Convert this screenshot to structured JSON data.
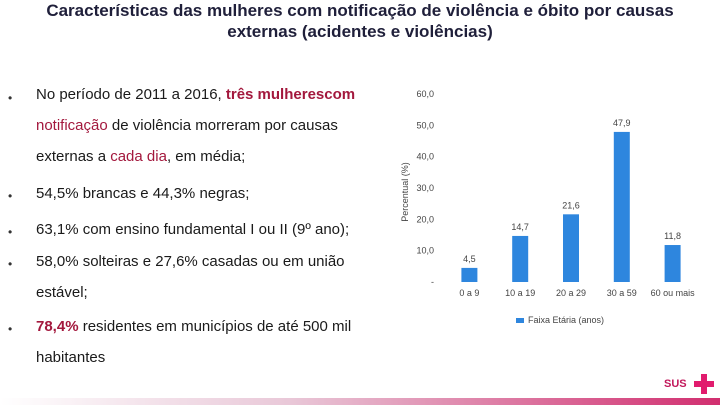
{
  "slide": {
    "title_line1": "Características das mulheres com notificação de violência e óbito por causas",
    "title_line2": "externas (acidentes e violências)"
  },
  "bullets": {
    "b1": {
      "line1_pre": "No período de 2011 a 2016, ",
      "line1_hl": "três mulherescom",
      "line2_hl": "notificação",
      "line2_post": " de violência morreram por causas",
      "line3_pre": "externas a ",
      "line3_hl": "cada dia",
      "line3_post": ", em média;"
    },
    "b2": "54,5% brancas e 44,3% negras;",
    "b3": "63,1% com ensino fundamental I ou II (9º ano);",
    "b4_line1": "58,0% solteiras e 27,6% casadas ou em união",
    "b4_line2": "estável;",
    "b5": {
      "line1_hl": "78,4%",
      "line1_post": " residentes em municípios de até 500 mil",
      "line2": "habitantes"
    }
  },
  "chart_data": {
    "type": "bar",
    "categories": [
      "0 a 9",
      "10 a 19",
      "20 a 29",
      "30 a 59",
      "60 ou mais"
    ],
    "series": [
      {
        "name": "Faixa Etária (anos)",
        "values": [
          4.5,
          14.7,
          21.6,
          47.9,
          11.8
        ],
        "labels": [
          "4,5",
          "14,7",
          "21,6",
          "47,9",
          "11,8"
        ]
      }
    ],
    "y_ticks": [
      "60,0",
      "50,0",
      "40,0",
      "30,0",
      "20,0",
      "10,0",
      "-"
    ],
    "ylabel": "Percentual (%)",
    "ylim": [
      0,
      60
    ],
    "grid": false,
    "legend_position": "bottom",
    "bar_color": "#2e86de"
  },
  "logo": {
    "text": "SUS"
  }
}
